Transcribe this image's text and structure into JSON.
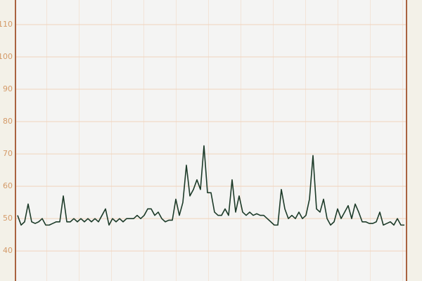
{
  "chart_data": {
    "type": "line",
    "values": [
      51,
      48,
      49,
      54.5,
      49,
      48.5,
      49,
      50,
      48,
      48,
      48.5,
      49,
      49,
      57,
      49,
      49,
      50,
      49,
      50,
      49,
      50,
      49,
      50,
      49,
      51,
      53,
      48,
      50,
      49,
      50,
      49,
      50,
      50,
      50,
      51,
      50,
      51,
      53,
      53,
      51,
      52,
      50,
      49,
      49.5,
      49.5,
      56,
      51,
      55,
      66.5,
      57,
      59,
      62,
      59,
      72.5,
      58,
      58,
      52,
      51,
      51,
      53,
      51,
      62,
      52,
      57,
      52,
      51,
      52,
      51,
      51.5,
      51,
      51,
      50,
      49,
      48,
      48,
      59,
      53,
      50,
      51,
      50,
      52,
      50,
      51,
      56,
      69.5,
      53,
      52,
      56,
      50,
      48,
      49,
      53,
      50,
      52,
      54,
      50,
      54.5,
      52,
      49,
      49,
      48.5,
      48.5,
      49,
      52,
      48,
      48.5,
      49,
      48,
      50,
      48,
      48
    ],
    "color": "#1c3a28",
    "ylim": [
      30.7,
      117.6
    ],
    "yticks": [
      40,
      50,
      60,
      70,
      80,
      90,
      100,
      110
    ],
    "grid": true
  }
}
